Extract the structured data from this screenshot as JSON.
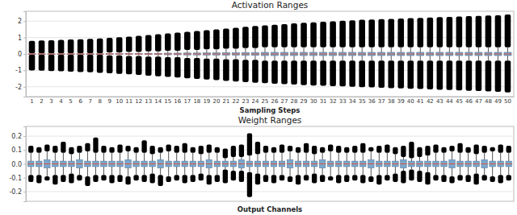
{
  "chart_data": [
    {
      "type": "box",
      "title": "Activation Ranges",
      "x_label": "Sampling Steps",
      "color": "#7ba7cc",
      "grid": true,
      "categories": [
        1,
        2,
        3,
        4,
        5,
        6,
        7,
        8,
        9,
        10,
        11,
        12,
        13,
        14,
        15,
        16,
        17,
        18,
        19,
        20,
        21,
        22,
        23,
        24,
        25,
        26,
        27,
        28,
        29,
        30,
        31,
        32,
        33,
        34,
        35,
        36,
        37,
        38,
        39,
        40,
        41,
        42,
        43,
        44,
        45,
        46,
        47,
        48,
        49,
        50
      ],
      "ylim": [
        -2.6,
        2.6
      ],
      "yticks": [
        -2,
        -1,
        0,
        1,
        2
      ],
      "max": [
        0.8,
        0.82,
        0.84,
        0.86,
        0.88,
        0.9,
        0.92,
        0.95,
        0.98,
        1.02,
        1.06,
        1.1,
        1.15,
        1.2,
        1.25,
        1.3,
        1.35,
        1.4,
        1.45,
        1.5,
        1.55,
        1.6,
        1.65,
        1.7,
        1.74,
        1.78,
        1.82,
        1.86,
        1.9,
        1.93,
        1.96,
        1.99,
        2.02,
        2.05,
        2.08,
        2.1,
        2.12,
        2.14,
        2.16,
        2.18,
        2.2,
        2.22,
        2.24,
        2.26,
        2.28,
        2.3,
        2.32,
        2.34,
        2.36,
        2.4
      ],
      "whisker_high": [
        0.04,
        0.04,
        0.04,
        0.04,
        0.04,
        0.04,
        0.04,
        0.04,
        0.08,
        0.08,
        0.12,
        0.12,
        0.16,
        0.16,
        0.2,
        0.2,
        0.24,
        0.24,
        0.28,
        0.28,
        0.32,
        0.32,
        0.36,
        0.36,
        0.4,
        0.4,
        0.4,
        0.4,
        0.4,
        0.4,
        0.4,
        0.4,
        0.4,
        0.4,
        0.4,
        0.4,
        0.4,
        0.4,
        0.4,
        0.4,
        0.4,
        0.4,
        0.4,
        0.4,
        0.4,
        0.4,
        0.4,
        0.4,
        0.4,
        0.4
      ],
      "q3": [
        0.01,
        0.01,
        0.01,
        0.01,
        0.01,
        0.01,
        0.01,
        0.01,
        0.02,
        0.02,
        0.03,
        0.03,
        0.04,
        0.04,
        0.05,
        0.05,
        0.06,
        0.06,
        0.07,
        0.07,
        0.08,
        0.08,
        0.09,
        0.09,
        0.1,
        0.1,
        0.1,
        0.1,
        0.1,
        0.1,
        0.1,
        0.1,
        0.1,
        0.1,
        0.1,
        0.1,
        0.1,
        0.1,
        0.1,
        0.1,
        0.1,
        0.1,
        0.1,
        0.1,
        0.1,
        0.1,
        0.1,
        0.1,
        0.1,
        0.1
      ],
      "median": [
        0,
        0,
        0,
        0,
        0,
        0,
        0,
        0,
        0,
        0,
        0,
        0,
        0,
        0,
        0,
        0,
        0,
        0,
        0,
        0,
        0,
        0,
        0,
        0,
        0,
        0,
        0,
        0,
        0,
        0,
        0,
        0,
        0,
        0,
        0,
        0,
        0,
        0,
        0,
        0,
        0,
        0,
        0,
        0,
        0,
        0,
        0,
        0,
        0,
        0
      ],
      "q1": [
        -0.01,
        -0.01,
        -0.01,
        -0.01,
        -0.01,
        -0.01,
        -0.01,
        -0.01,
        -0.02,
        -0.02,
        -0.03,
        -0.03,
        -0.04,
        -0.04,
        -0.05,
        -0.05,
        -0.06,
        -0.06,
        -0.07,
        -0.07,
        -0.08,
        -0.08,
        -0.09,
        -0.09,
        -0.1,
        -0.1,
        -0.1,
        -0.1,
        -0.1,
        -0.1,
        -0.1,
        -0.1,
        -0.1,
        -0.1,
        -0.1,
        -0.1,
        -0.1,
        -0.1,
        -0.1,
        -0.1,
        -0.1,
        -0.1,
        -0.1,
        -0.1,
        -0.1,
        -0.1,
        -0.1,
        -0.1,
        -0.1,
        -0.1
      ],
      "whisker_low": [
        -0.04,
        -0.04,
        -0.04,
        -0.04,
        -0.04,
        -0.04,
        -0.04,
        -0.04,
        -0.08,
        -0.08,
        -0.12,
        -0.12,
        -0.16,
        -0.16,
        -0.2,
        -0.2,
        -0.24,
        -0.24,
        -0.28,
        -0.28,
        -0.32,
        -0.32,
        -0.36,
        -0.36,
        -0.4,
        -0.4,
        -0.4,
        -0.4,
        -0.4,
        -0.4,
        -0.4,
        -0.4,
        -0.4,
        -0.4,
        -0.4,
        -0.4,
        -0.4,
        -0.4,
        -0.4,
        -0.4,
        -0.4,
        -0.4,
        -0.4,
        -0.4,
        -0.4,
        -0.4,
        -0.4,
        -0.4,
        -0.4,
        -0.4
      ],
      "min": [
        -1.0,
        -1.02,
        -1.04,
        -1.06,
        -1.08,
        -1.1,
        -1.12,
        -1.15,
        -1.18,
        -1.21,
        -1.24,
        -1.28,
        -1.32,
        -1.36,
        -1.4,
        -1.44,
        -1.48,
        -1.52,
        -1.56,
        -1.6,
        -1.64,
        -1.68,
        -1.72,
        -1.75,
        -1.78,
        -1.81,
        -1.84,
        -1.87,
        -1.9,
        -1.92,
        -1.94,
        -1.96,
        -1.98,
        -2.0,
        -2.02,
        -2.04,
        -2.06,
        -2.08,
        -2.1,
        -2.12,
        -2.14,
        -2.16,
        -2.18,
        -2.2,
        -2.22,
        -2.24,
        -2.26,
        -2.28,
        -2.3,
        -2.34
      ]
    },
    {
      "type": "box",
      "title": "Weight Ranges",
      "x_label": "Output Channels",
      "color": "#7ba7cc",
      "grid": true,
      "tick_labels": "y",
      "categories": [
        null,
        null,
        null,
        null,
        null,
        null,
        null,
        null,
        null,
        null,
        null,
        null,
        null,
        null,
        null,
        null,
        null,
        null,
        null,
        null,
        null,
        null,
        null,
        null,
        null,
        null,
        null,
        null,
        null,
        null,
        null,
        null,
        null,
        null,
        null,
        null,
        null,
        null,
        null,
        null,
        null,
        null,
        null,
        null,
        null,
        null,
        null,
        null,
        null,
        null,
        null,
        null,
        null,
        null,
        null,
        null,
        null,
        null,
        null,
        null
      ],
      "ylim": [
        -0.27,
        0.27
      ],
      "yticks": [
        -0.2,
        -0.1,
        {
          "value": 0,
          "label": "0.0"
        },
        0.1,
        0.2
      ],
      "max": [
        0.13,
        0.12,
        0.14,
        0.13,
        0.16,
        0.12,
        0.13,
        0.15,
        0.19,
        0.13,
        0.12,
        0.14,
        0.13,
        0.12,
        0.17,
        0.13,
        0.12,
        0.14,
        0.13,
        0.15,
        0.12,
        0.13,
        0.14,
        0.12,
        0.11,
        0.13,
        0.14,
        0.22,
        0.16,
        0.13,
        0.12,
        0.14,
        0.13,
        0.12,
        0.15,
        0.13,
        0.12,
        0.14,
        0.13,
        0.12,
        0.13,
        0.15,
        0.12,
        0.13,
        0.14,
        0.12,
        0.13,
        0.16,
        0.12,
        0.13,
        0.14,
        0.12,
        0.13,
        0.15,
        0.12,
        0.14,
        0.13,
        0.12,
        0.14,
        0.13
      ],
      "whisker_high": [
        0.08,
        0.08,
        0.09,
        0.08,
        0.08,
        0.07,
        0.08,
        0.09,
        0.08,
        0.08,
        0.08,
        0.08,
        0.09,
        0.08,
        0.08,
        0.07,
        0.08,
        0.09,
        0.08,
        0.08,
        0.08,
        0.07,
        0.08,
        0.08,
        0.04,
        0.05,
        0.05,
        0.06,
        0.07,
        0.08,
        0.08,
        0.08,
        0.09,
        0.08,
        0.08,
        0.07,
        0.08,
        0.09,
        0.08,
        0.08,
        0.08,
        0.08,
        0.09,
        0.08,
        0.08,
        0.07,
        0.05,
        0.04,
        0.05,
        0.06,
        0.08,
        0.08,
        0.09,
        0.08,
        0.08,
        0.07,
        0.08,
        0.09,
        0.08,
        0.08
      ],
      "q3": [
        0.02,
        0.02,
        0.03,
        0.02,
        0.02,
        0.02,
        0.03,
        0.02,
        0.02,
        0.02,
        0.02,
        0.02,
        0.03,
        0.02,
        0.02,
        0.02,
        0.03,
        0.02,
        0.02,
        0.02,
        0.02,
        0.02,
        0.03,
        0.02,
        0.02,
        0.02,
        0.03,
        0.02,
        0.02,
        0.02,
        0.02,
        0.02,
        0.03,
        0.02,
        0.02,
        0.02,
        0.03,
        0.02,
        0.02,
        0.02,
        0.02,
        0.02,
        0.03,
        0.02,
        0.02,
        0.02,
        0.03,
        0.02,
        0.02,
        0.02,
        0.02,
        0.02,
        0.03,
        0.02,
        0.02,
        0.02,
        0.03,
        0.02,
        0.02,
        0.02
      ],
      "median": [
        0,
        0,
        0,
        0,
        0,
        0,
        0,
        0,
        0,
        0,
        0,
        0,
        0,
        0,
        0,
        0,
        0,
        0,
        0,
        0,
        0,
        0,
        0,
        0,
        0,
        0,
        0,
        0,
        0,
        0,
        0,
        0,
        0,
        0,
        0,
        0,
        0,
        0,
        0,
        0,
        0,
        0,
        0,
        0,
        0,
        0,
        0,
        0,
        0,
        0,
        0,
        0,
        0,
        0,
        0,
        0,
        0,
        0,
        0,
        0
      ],
      "q1": [
        -0.02,
        -0.02,
        -0.03,
        -0.02,
        -0.02,
        -0.02,
        -0.03,
        -0.02,
        -0.02,
        -0.02,
        -0.02,
        -0.02,
        -0.03,
        -0.02,
        -0.02,
        -0.02,
        -0.03,
        -0.02,
        -0.02,
        -0.02,
        -0.02,
        -0.02,
        -0.03,
        -0.02,
        -0.02,
        -0.02,
        -0.03,
        -0.02,
        -0.02,
        -0.02,
        -0.02,
        -0.02,
        -0.03,
        -0.02,
        -0.02,
        -0.02,
        -0.03,
        -0.02,
        -0.02,
        -0.02,
        -0.02,
        -0.02,
        -0.03,
        -0.02,
        -0.02,
        -0.02,
        -0.03,
        -0.02,
        -0.02,
        -0.02,
        -0.02,
        -0.02,
        -0.03,
        -0.02,
        -0.02,
        -0.02,
        -0.03,
        -0.02,
        -0.02,
        -0.02
      ],
      "whisker_low": [
        -0.08,
        -0.08,
        -0.09,
        -0.08,
        -0.08,
        -0.07,
        -0.08,
        -0.09,
        -0.08,
        -0.08,
        -0.08,
        -0.08,
        -0.09,
        -0.08,
        -0.08,
        -0.07,
        -0.08,
        -0.09,
        -0.08,
        -0.08,
        -0.08,
        -0.07,
        -0.08,
        -0.08,
        -0.04,
        -0.05,
        -0.05,
        -0.06,
        -0.07,
        -0.08,
        -0.08,
        -0.08,
        -0.09,
        -0.08,
        -0.08,
        -0.07,
        -0.08,
        -0.09,
        -0.08,
        -0.08,
        -0.08,
        -0.08,
        -0.09,
        -0.08,
        -0.08,
        -0.07,
        -0.05,
        -0.04,
        -0.05,
        -0.06,
        -0.08,
        -0.08,
        -0.09,
        -0.08,
        -0.08,
        -0.07,
        -0.08,
        -0.09,
        -0.08,
        -0.08
      ],
      "min": [
        -0.13,
        -0.14,
        -0.12,
        -0.15,
        -0.13,
        -0.14,
        -0.12,
        -0.16,
        -0.13,
        -0.12,
        -0.14,
        -0.13,
        -0.15,
        -0.12,
        -0.13,
        -0.14,
        -0.16,
        -0.13,
        -0.12,
        -0.14,
        -0.13,
        -0.12,
        -0.15,
        -0.13,
        -0.14,
        -0.12,
        -0.13,
        -0.24,
        -0.15,
        -0.13,
        -0.14,
        -0.12,
        -0.13,
        -0.15,
        -0.12,
        -0.14,
        -0.13,
        -0.12,
        -0.14,
        -0.13,
        -0.12,
        -0.14,
        -0.13,
        -0.15,
        -0.12,
        -0.13,
        -0.14,
        -0.12,
        -0.13,
        -0.15,
        -0.12,
        -0.13,
        -0.14,
        -0.12,
        -0.13,
        -0.15,
        -0.12,
        -0.13,
        -0.14,
        -0.12
      ]
    }
  ]
}
